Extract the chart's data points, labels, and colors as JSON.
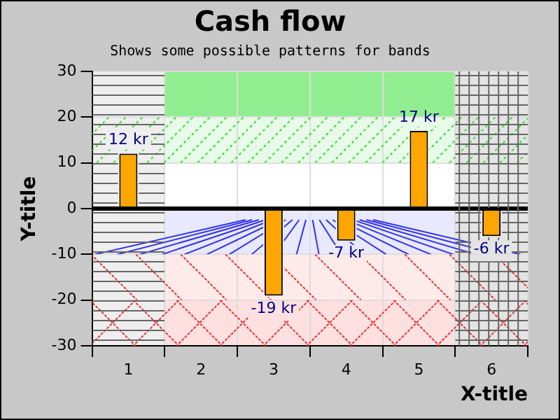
{
  "chart_data": {
    "type": "bar",
    "title": "Cash flow",
    "subtitle": "Shows some possible patterns for bands",
    "xlabel": "X-title",
    "ylabel": "Y-title",
    "x": [
      1,
      2,
      3,
      4,
      5,
      6
    ],
    "values": [
      12,
      null,
      -19,
      -7,
      17,
      -6
    ],
    "value_labels": [
      "12 kr",
      null,
      "-19 kr",
      "-7 kr",
      "17 kr",
      "-6 kr"
    ],
    "color": "#ffa500",
    "xlim": [
      0.5,
      6.5
    ],
    "xticks": [
      {
        "value": 0.5,
        "label": null
      },
      1,
      {
        "value": 1.5,
        "label": null
      },
      2,
      {
        "value": 2.5,
        "label": null
      },
      3,
      {
        "value": 3.5,
        "label": null
      },
      4,
      {
        "value": 4.5,
        "label": null
      },
      5,
      {
        "value": 5.5,
        "label": null
      },
      6,
      {
        "value": 6.5,
        "label": null
      }
    ],
    "ylim": [
      -30,
      30
    ],
    "yticks": [
      -30,
      -20,
      -10,
      0,
      10,
      20,
      30
    ],
    "grid": true,
    "legend": false,
    "ref_lines": [
      {
        "axis": "y",
        "value": 0,
        "color": "#000000"
      }
    ],
    "bands": [
      {
        "axis": "y",
        "from": 20,
        "to": 30,
        "color": "#90ee90"
      },
      {
        "axis": "y",
        "from": 10,
        "to": 20,
        "color": "#e8fae8"
      },
      {
        "axis": "y",
        "from": -10,
        "to": 0,
        "color": "#e8e8ff"
      },
      {
        "axis": "y",
        "from": -20,
        "to": -10,
        "color": "#ffeaea"
      },
      {
        "axis": "y",
        "from": -30,
        "to": -20,
        "color": "#ffe0e0"
      },
      {
        "axis": "x",
        "from": 0.5,
        "to": 1.5,
        "color": "#eeeeee"
      },
      {
        "axis": "x",
        "from": 5.5,
        "to": 6.5,
        "color": "#e4e4e4"
      }
    ]
  }
}
